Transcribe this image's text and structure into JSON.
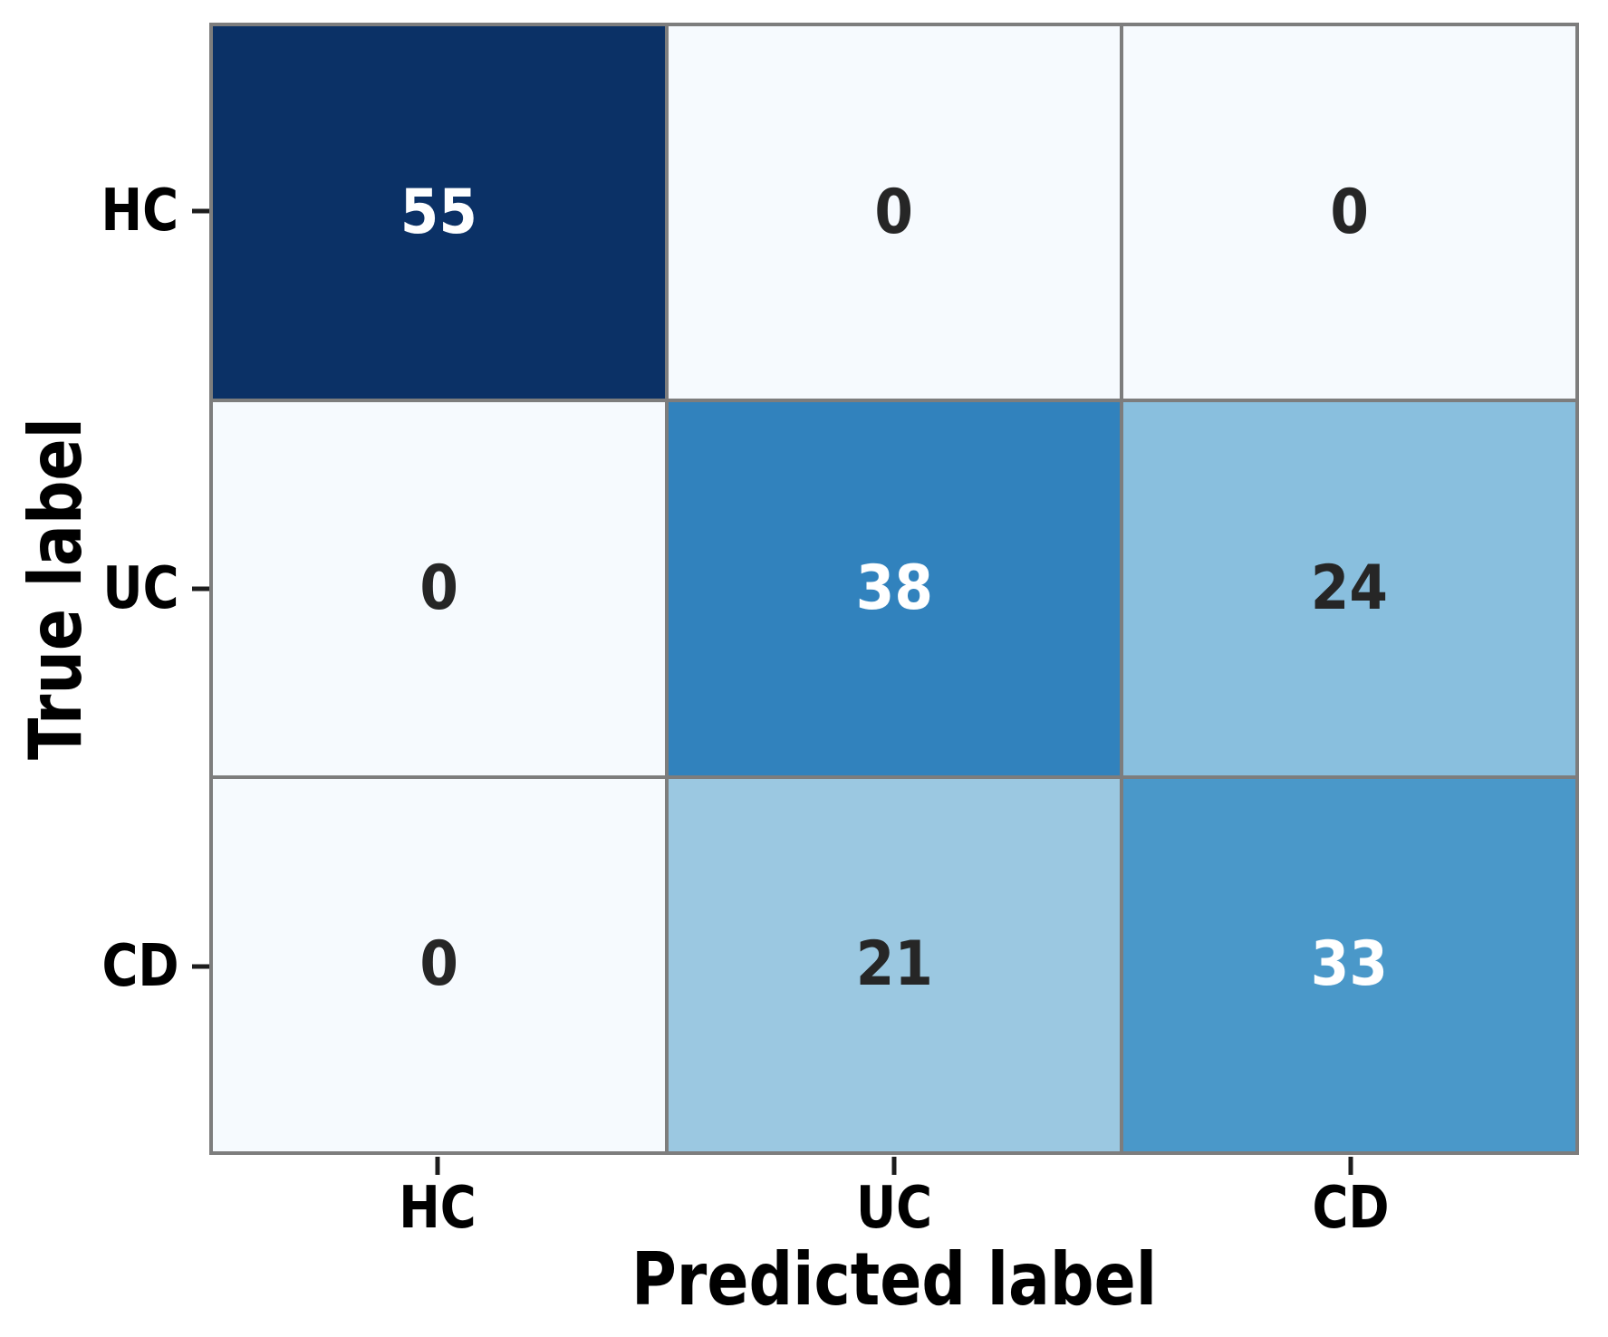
{
  "figure": {
    "background": "#ffffff",
    "grid_color": "#7d7d7d",
    "tick_mark_color": "#1c1c1c"
  },
  "chart_data": {
    "type": "heatmap",
    "subtype": "confusion-matrix",
    "title": "",
    "xlabel": "Predicted label",
    "ylabel": "True label",
    "x_categories": [
      "HC",
      "UC",
      "CD"
    ],
    "y_categories": [
      "HC",
      "UC",
      "CD"
    ],
    "matrix": [
      [
        55,
        0,
        0
      ],
      [
        0,
        38,
        24
      ],
      [
        0,
        21,
        33
      ]
    ],
    "colormap": "Blues",
    "value_range": [
      0,
      55
    ],
    "legend": "none",
    "grid": "cell-borders",
    "cells": [
      {
        "row": "HC",
        "col": "HC",
        "value": "55",
        "bg": "#0b3166",
        "fg": "#ffffff"
      },
      {
        "row": "HC",
        "col": "UC",
        "value": "0",
        "bg": "#f6fafe",
        "fg": "#262626"
      },
      {
        "row": "HC",
        "col": "CD",
        "value": "0",
        "bg": "#f6fafe",
        "fg": "#262626"
      },
      {
        "row": "UC",
        "col": "HC",
        "value": "0",
        "bg": "#f6fafe",
        "fg": "#262626"
      },
      {
        "row": "UC",
        "col": "UC",
        "value": "38",
        "bg": "#3182bd",
        "fg": "#ffffff"
      },
      {
        "row": "UC",
        "col": "CD",
        "value": "24",
        "bg": "#89bfde",
        "fg": "#262626"
      },
      {
        "row": "CD",
        "col": "HC",
        "value": "0",
        "bg": "#f6fafe",
        "fg": "#262626"
      },
      {
        "row": "CD",
        "col": "UC",
        "value": "21",
        "bg": "#9bc8e1",
        "fg": "#262626"
      },
      {
        "row": "CD",
        "col": "CD",
        "value": "33",
        "bg": "#4a98c9",
        "fg": "#ffffff"
      }
    ]
  }
}
